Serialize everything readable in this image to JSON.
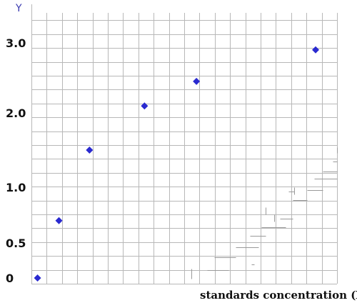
{
  "chart_data": {
    "type": "scatter",
    "title": "",
    "ylabel": "Y",
    "xlabel": "standards concentration (X)",
    "y_tick_labels": [
      "0",
      "0.5",
      "1.0",
      "2.0",
      "3.0"
    ],
    "grid": true,
    "marker": "diamond",
    "marker_color": "#2a2ad0",
    "series": [
      {
        "points": [
          {
            "x": 0.2,
            "y": 0.0
          },
          {
            "x": 0.9,
            "y": 0.7
          },
          {
            "x": 1.9,
            "y": 1.5
          },
          {
            "x": 3.7,
            "y": 2.1
          },
          {
            "x": 5.4,
            "y": 2.45
          },
          {
            "x": 9.3,
            "y": 2.9
          }
        ]
      }
    ]
  }
}
